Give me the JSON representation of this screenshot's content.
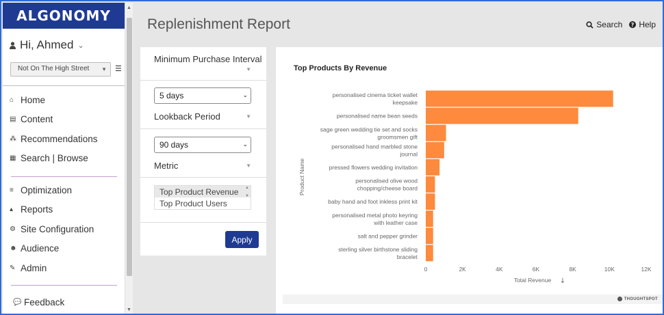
{
  "brand": {
    "logo_text": "ALGONOMY"
  },
  "user": {
    "greeting": "Hi, Ahmed"
  },
  "store_selector": {
    "value": "Not On The High Street"
  },
  "nav_primary": [
    {
      "label": "Home",
      "icon": "home-icon"
    },
    {
      "label": "Content",
      "icon": "content-icon"
    },
    {
      "label": "Recommendations",
      "icon": "recommendations-icon"
    },
    {
      "label": "Search | Browse",
      "icon": "search-browse-icon"
    }
  ],
  "nav_secondary": [
    {
      "label": "Optimization",
      "icon": "optimization-icon"
    },
    {
      "label": "Reports",
      "icon": "reports-icon"
    },
    {
      "label": "Site Configuration",
      "icon": "site-config-icon"
    },
    {
      "label": "Audience",
      "icon": "audience-icon"
    },
    {
      "label": "Admin",
      "icon": "admin-icon"
    }
  ],
  "feedback": {
    "label": "Feedback"
  },
  "header": {
    "title": "Replenishment Report",
    "search_label": "Search",
    "help_label": "Help"
  },
  "filters": {
    "min_purchase_label": "Minimum Purchase Interval",
    "min_purchase_value": "5 days",
    "lookback_label": "Lookback Period",
    "lookback_value": "90 days",
    "metric_label": "Metric",
    "metric_options": [
      "Top Product Revenue",
      "Top Product Users"
    ],
    "metric_selected": "Top Product Revenue",
    "apply_label": "Apply"
  },
  "chart_footer": {
    "brand": "THOUGHTSPOT"
  },
  "colors": {
    "bar": "#fd8a3d",
    "brand_blue": "#1f3a93",
    "frame": "#2f6bd8"
  },
  "chart_data": {
    "type": "bar",
    "orientation": "horizontal",
    "title": "Top Products By Revenue",
    "xlabel": "Total Revenue",
    "ylabel": "Product Name",
    "xlim": [
      0,
      12000
    ],
    "xticks": [
      0,
      2000,
      4000,
      6000,
      8000,
      10000,
      12000
    ],
    "xtick_labels": [
      "0",
      "2K",
      "4K",
      "6K",
      "8K",
      "10K",
      "12K"
    ],
    "categories": [
      [
        "personalised cinema ticket wallet",
        "keepsake"
      ],
      [
        "personalised name bean seeds"
      ],
      [
        "sage green wedding tie set and socks",
        "groomsmen gift"
      ],
      [
        "personalised hand marbled stone",
        "journal"
      ],
      [
        "pressed flowers wedding invitation"
      ],
      [
        "personalised olive wood",
        "chopping/cheese board"
      ],
      [
        "baby hand and foot inkless print kit"
      ],
      [
        "personalised metal photo keyring",
        "with leather case"
      ],
      [
        "salt and pepper grinder"
      ],
      [
        "sterling silver birthstone sliding",
        "bracelet"
      ]
    ],
    "values": [
      10200,
      8300,
      1100,
      1000,
      750,
      500,
      500,
      400,
      400,
      400
    ],
    "sort_indicator": "descending"
  }
}
